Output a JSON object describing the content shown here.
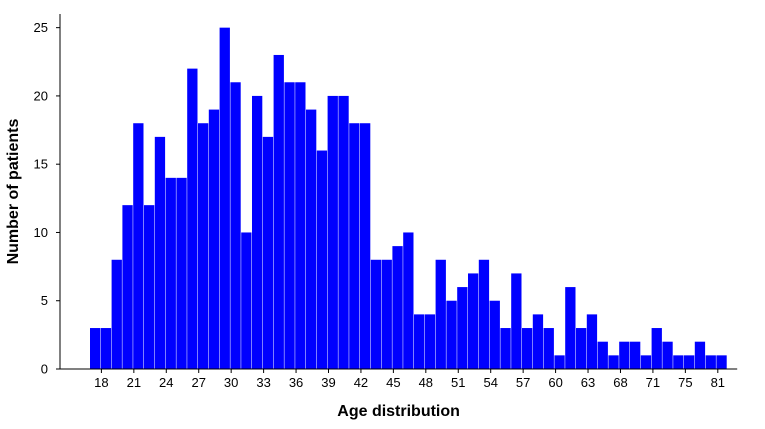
{
  "chart_data": {
    "type": "bar",
    "xlabel": "Age distribution",
    "ylabel": "Number of patients",
    "ylim": [
      0,
      26
    ],
    "yticks": [
      0,
      5,
      10,
      15,
      20,
      25
    ],
    "xticks": [
      "18",
      "21",
      "24",
      "27",
      "30",
      "33",
      "36",
      "39",
      "42",
      "45",
      "48",
      "51",
      "54",
      "57",
      "60",
      "63",
      "68",
      "71",
      "75",
      "81"
    ],
    "bar_color": "#0000FF",
    "grid": false,
    "values": [
      3,
      3,
      8,
      12,
      18,
      12,
      17,
      14,
      14,
      22,
      18,
      19,
      25,
      21,
      10,
      20,
      17,
      23,
      21,
      21,
      19,
      16,
      20,
      20,
      18,
      18,
      8,
      8,
      9,
      10,
      4,
      4,
      8,
      5,
      6,
      7,
      8,
      5,
      3,
      7,
      3,
      4,
      3,
      1,
      6,
      3,
      4,
      2,
      1,
      2,
      2,
      1,
      3,
      2,
      1,
      1,
      2,
      1,
      1
    ]
  }
}
